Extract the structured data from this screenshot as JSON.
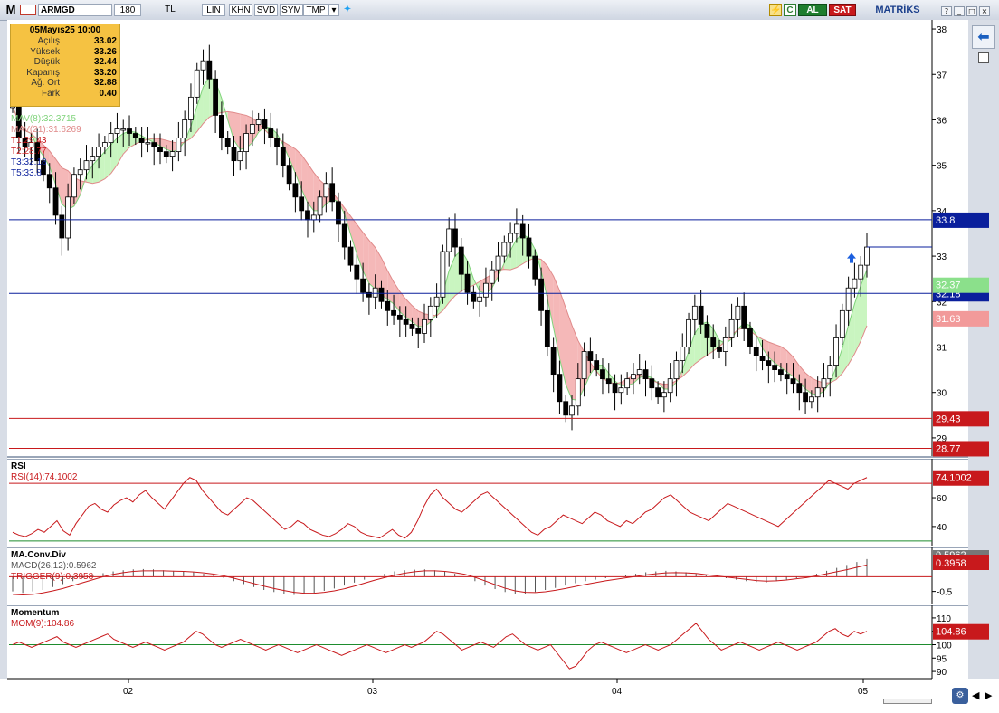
{
  "toolbar": {
    "logo": "M",
    "symbol": "ARMGD",
    "period": "180",
    "currency": "TL",
    "buttons": [
      "LIN",
      "KHN",
      "SVD",
      "SYM",
      "TMP"
    ],
    "al": "AL",
    "sat": "SAT",
    "brand": "MATRİKS"
  },
  "ohlc_box": {
    "date": "05Mayıs25 10:00",
    "rows": [
      {
        "label": "Açılış",
        "value": "33.02"
      },
      {
        "label": "Yüksek",
        "value": "33.26"
      },
      {
        "label": "Düşük",
        "value": "32.44"
      },
      {
        "label": "Kapanış",
        "value": "33.20"
      },
      {
        "label": "Ağ. Ort",
        "value": "32.88"
      },
      {
        "label": "Fark",
        "value": "0.40"
      }
    ]
  },
  "colors": {
    "up": "#ffffff",
    "down": "#000000",
    "mav8_fill": "#c9f5c0",
    "mav21_fill": "#f5b8b8",
    "level_blue": "#0a1f9c",
    "level_red": "#c8191c",
    "rsi": "#c8191c",
    "green_line": "#1e8c2e"
  },
  "chart_data": [
    {
      "type": "candlestick",
      "title": "",
      "x_labels": [
        "02",
        "03",
        "04",
        "05"
      ],
      "y_ticks": [
        29,
        30,
        31,
        32,
        33,
        34,
        35,
        36,
        37,
        38
      ],
      "legend": [
        {
          "label": "MAV(8)",
          "value": ":32.3715",
          "color": "#7fd37a"
        },
        {
          "label": "MAV(21)",
          "value": ":31.6269",
          "color": "#e08a8a"
        },
        {
          "label": "T1:29.43",
          "color": "#c8191c"
        },
        {
          "label": "T2:28.77",
          "color": "#c8191c"
        },
        {
          "label": "T3:32.18",
          "color": "#0a1f9c"
        },
        {
          "label": "T5:33.8",
          "color": "#0a1f9c"
        }
      ],
      "levels": [
        {
          "value": 33.8,
          "label": "33.8",
          "color": "#0a1f9c"
        },
        {
          "value": 32.18,
          "label": "32.18",
          "color": "#0a1f9c"
        },
        {
          "value": 29.43,
          "label": "29.43",
          "color": "#c8191c"
        },
        {
          "value": 28.77,
          "label": "28.77",
          "color": "#c8191c"
        }
      ],
      "axis_badges": [
        {
          "value": 32.37,
          "label": "32.37",
          "color": "#8be08b"
        },
        {
          "value": 31.63,
          "label": "31.63",
          "color": "#f29a9a"
        }
      ],
      "close_series": [
        36.3,
        35.6,
        35.4,
        35.5,
        35.1,
        34.8,
        34.5,
        33.9,
        33.4,
        34.3,
        34.8,
        34.9,
        35.1,
        35.2,
        35.4,
        35.5,
        35.7,
        35.8,
        35.8,
        35.7,
        35.6,
        35.5,
        35.5,
        35.4,
        35.3,
        35.2,
        35.3,
        35.6,
        36.0,
        36.5,
        37.1,
        37.3,
        36.9,
        36.1,
        35.6,
        35.4,
        35.1,
        35.3,
        35.7,
        35.9,
        36.0,
        35.8,
        35.6,
        35.4,
        35.0,
        34.6,
        34.3,
        34.0,
        33.8,
        33.9,
        34.3,
        34.6,
        34.2,
        33.7,
        33.2,
        32.8,
        32.5,
        32.2,
        32.1,
        32.3,
        32.0,
        31.8,
        31.7,
        31.6,
        31.5,
        31.4,
        31.3,
        31.6,
        31.9,
        32.1,
        33.1,
        33.6,
        33.2,
        32.6,
        32.2,
        32.0,
        32.1,
        32.4,
        32.7,
        33.0,
        33.3,
        33.5,
        33.7,
        33.4,
        33.0,
        32.5,
        31.8,
        31.0,
        30.4,
        29.8,
        29.5,
        29.7,
        30.3,
        30.9,
        30.7,
        30.5,
        30.3,
        30.2,
        30.0,
        30.1,
        30.3,
        30.4,
        30.5,
        30.3,
        30.1,
        29.9,
        30.0,
        30.3,
        30.7,
        31.0,
        31.6,
        31.9,
        31.5,
        31.2,
        31.0,
        30.9,
        31.2,
        31.6,
        31.9,
        31.4,
        31.0,
        30.8,
        30.7,
        30.6,
        30.5,
        30.4,
        30.3,
        30.2,
        30.0,
        29.8,
        29.9,
        30.1,
        30.3,
        30.6,
        31.2,
        31.8,
        32.3,
        32.5,
        32.8,
        33.2
      ],
      "ylim": [
        28.6,
        38.2
      ]
    },
    {
      "type": "line",
      "title": "RSI",
      "legend": [
        {
          "label": "RSI(14)",
          "value": ":74.1002",
          "color": "#c8191c"
        }
      ],
      "y_ticks": [
        40,
        60
      ],
      "ylim": [
        28,
        82
      ],
      "reference_lines": [
        {
          "value": 30,
          "color": "#1e8c2e"
        },
        {
          "value": 70,
          "color": "#c8191c"
        }
      ],
      "badge": "74.1002",
      "values": [
        36,
        34,
        33,
        35,
        38,
        36,
        40,
        44,
        37,
        34,
        42,
        48,
        54,
        56,
        52,
        50,
        55,
        58,
        60,
        57,
        62,
        65,
        60,
        56,
        52,
        58,
        64,
        70,
        74,
        72,
        65,
        60,
        55,
        50,
        48,
        52,
        56,
        60,
        58,
        54,
        50,
        46,
        42,
        38,
        40,
        44,
        42,
        38,
        36,
        34,
        33,
        35,
        38,
        42,
        40,
        36,
        34,
        33,
        32,
        35,
        38,
        34,
        32,
        36,
        44,
        54,
        62,
        66,
        60,
        56,
        52,
        50,
        54,
        58,
        62,
        64,
        60,
        56,
        52,
        48,
        44,
        40,
        36,
        34,
        38,
        40,
        44,
        48,
        46,
        44,
        42,
        46,
        50,
        48,
        44,
        42,
        40,
        44,
        42,
        46,
        50,
        52,
        56,
        60,
        62,
        58,
        54,
        50,
        48,
        46,
        44,
        48,
        52,
        56,
        54,
        52,
        50,
        48,
        46,
        44,
        42,
        40,
        44,
        48,
        52,
        56,
        60,
        64,
        68,
        72,
        70,
        68,
        66,
        70,
        72,
        74
      ]
    },
    {
      "type": "bar+line",
      "title": "MA.Conv.Div",
      "legend": [
        {
          "label": "MACD(26,12)",
          "value": ":0.5962",
          "color": "#555555"
        },
        {
          "label": "TRIGGER(9)",
          "value": ":0.3958",
          "color": "#c8191c"
        }
      ],
      "y_ticks": [
        -0.5
      ],
      "ylim": [
        -0.85,
        0.75
      ],
      "badges": [
        {
          "label": "0.5962",
          "color": "#777777"
        },
        {
          "label": "0.3958",
          "color": "#c8191c"
        }
      ],
      "macd": [
        -0.5,
        -0.55,
        -0.5,
        -0.45,
        -0.35,
        -0.25,
        -0.15,
        -0.05,
        0.05,
        0.12,
        0.18,
        0.22,
        0.25,
        0.26,
        0.25,
        0.22,
        0.2,
        0.18,
        0.15,
        0.1,
        0.05,
        -0.05,
        -0.15,
        -0.25,
        -0.35,
        -0.45,
        -0.52,
        -0.58,
        -0.62,
        -0.6,
        -0.55,
        -0.48,
        -0.4,
        -0.3,
        -0.2,
        -0.1,
        0.0,
        0.1,
        0.18,
        0.22,
        0.24,
        0.25,
        0.22,
        0.18,
        0.1,
        0.0,
        -0.15,
        -0.3,
        -0.42,
        -0.52,
        -0.6,
        -0.58,
        -0.52,
        -0.45,
        -0.38,
        -0.3,
        -0.22,
        -0.15,
        -0.1,
        -0.05,
        0.0,
        0.05,
        0.1,
        0.15,
        0.18,
        0.2,
        0.18,
        0.15,
        0.1,
        0.05,
        0.0,
        -0.05,
        -0.1,
        -0.15,
        -0.18,
        -0.2,
        -0.15,
        -0.1,
        -0.05,
        0.0,
        0.1,
        0.2,
        0.3,
        0.4,
        0.5,
        0.6
      ],
      "trigger": [
        -0.6,
        -0.62,
        -0.6,
        -0.55,
        -0.48,
        -0.4,
        -0.3,
        -0.2,
        -0.1,
        0.0,
        0.08,
        0.14,
        0.18,
        0.2,
        0.2,
        0.2,
        0.19,
        0.18,
        0.16,
        0.13,
        0.09,
        0.03,
        -0.05,
        -0.14,
        -0.23,
        -0.32,
        -0.4,
        -0.47,
        -0.53,
        -0.56,
        -0.56,
        -0.53,
        -0.48,
        -0.41,
        -0.32,
        -0.22,
        -0.12,
        -0.03,
        0.05,
        0.12,
        0.17,
        0.2,
        0.2,
        0.18,
        0.14,
        0.08,
        -0.02,
        -0.14,
        -0.27,
        -0.39,
        -0.48,
        -0.53,
        -0.54,
        -0.51,
        -0.46,
        -0.4,
        -0.33,
        -0.26,
        -0.2,
        -0.14,
        -0.09,
        -0.04,
        0.01,
        0.06,
        0.1,
        0.13,
        0.14,
        0.13,
        0.11,
        0.07,
        0.03,
        -0.01,
        -0.05,
        -0.09,
        -0.13,
        -0.15,
        -0.14,
        -0.11,
        -0.07,
        -0.03,
        0.03,
        0.1,
        0.17,
        0.24,
        0.32,
        0.4
      ]
    },
    {
      "type": "line",
      "title": "Momentum",
      "legend": [
        {
          "label": "MOM(9)",
          "value": ":104.86",
          "color": "#c8191c"
        }
      ],
      "y_ticks": [
        90,
        95,
        100,
        105,
        110
      ],
      "ylim": [
        88,
        112
      ],
      "reference_lines": [
        {
          "value": 100,
          "color": "#1e8c2e"
        }
      ],
      "badge": "104.86",
      "values": [
        100,
        101,
        100,
        99,
        100,
        101,
        102,
        103,
        101,
        100,
        99,
        100,
        101,
        102,
        103,
        104,
        102,
        101,
        100,
        99,
        100,
        101,
        100,
        99,
        98,
        99,
        100,
        101,
        103,
        105,
        104,
        102,
        100,
        99,
        100,
        101,
        102,
        101,
        100,
        99,
        98,
        99,
        100,
        99,
        98,
        97,
        98,
        99,
        100,
        99,
        98,
        97,
        96,
        97,
        98,
        99,
        100,
        99,
        98,
        97,
        98,
        99,
        100,
        99,
        100,
        101,
        103,
        105,
        104,
        102,
        100,
        98,
        99,
        100,
        101,
        100,
        99,
        101,
        103,
        104,
        102,
        100,
        99,
        98,
        99,
        100,
        97,
        94,
        91,
        92,
        95,
        98,
        100,
        101,
        100,
        99,
        98,
        97,
        98,
        99,
        100,
        99,
        98,
        99,
        100,
        102,
        104,
        106,
        108,
        105,
        102,
        100,
        98,
        99,
        100,
        101,
        100,
        99,
        98,
        99,
        100,
        101,
        100,
        99,
        98,
        99,
        100,
        101,
        103,
        105,
        106,
        104,
        103,
        105,
        104,
        105
      ]
    }
  ],
  "x_axis": {
    "labels": [
      "02",
      "03",
      "04",
      "05"
    ]
  },
  "panels": {
    "main": "ARMGD",
    "rsi": "RSI",
    "macd": "MA.Conv.Div",
    "mom": "Momentum"
  }
}
